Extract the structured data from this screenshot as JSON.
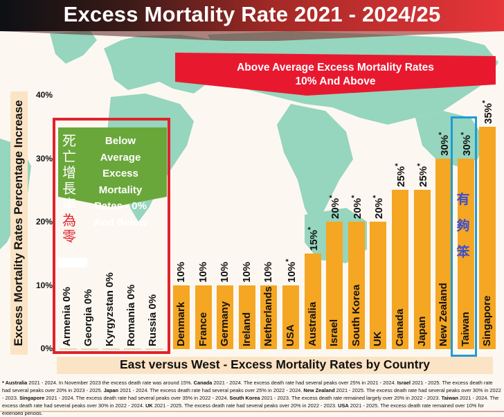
{
  "header": {
    "title": "Excess Mortality Rate 2021 - 2024/25"
  },
  "banners": {
    "above": {
      "line1": "Above Average Excess Mortality Rates",
      "line2": "10% And Above",
      "color": "#e8192f"
    },
    "below": {
      "lines": [
        "Below",
        "Average",
        "Excess",
        "Mortality",
        "Rates - 0%",
        "And Below"
      ],
      "color": "#6aa73a"
    },
    "cjk_zero_growth": {
      "white_chars": [
        "死",
        "亡",
        "增",
        "長",
        "率"
      ],
      "red_chars": [
        "為",
        "零"
      ]
    },
    "cjk_taiwan": [
      "有",
      "夠",
      "笨"
    ]
  },
  "colors": {
    "bar": "#f5a623",
    "red_box": "#e1222c",
    "blue_box": "#1f9ad6",
    "map": "#96d5be",
    "background": "#fcf8f1"
  },
  "chart_data": {
    "type": "bar",
    "title": "Excess Mortality Rate 2021 - 2024/25",
    "xlabel": "East versus West - Excess Mortality Rates by Country",
    "ylabel": "Excess Mortality Rates Percentage Increase",
    "ylim": [
      0,
      40
    ],
    "yticks": [
      "0%",
      "10%",
      "20%",
      "30%",
      "40%"
    ],
    "grid": false,
    "zero_group": {
      "label": "Below Average Excess Mortality Rates - 0% And Below",
      "categories": [
        "Armenia",
        "Georgia",
        "Kyrgyzstan",
        "Romania",
        "Russia"
      ],
      "values": [
        0,
        0,
        0,
        0,
        0
      ],
      "labels": [
        "Armenia 0%",
        "Georgia 0%",
        "Kyrgyzstan 0%",
        "Romania 0%",
        "Russia 0%"
      ]
    },
    "categories": [
      "Denmark",
      "France",
      "Germany",
      "Ireland",
      "Netherlands",
      "USA",
      "Australia",
      "Israel",
      "South Korea",
      "UK",
      "Canada",
      "Japan",
      "New Zealand",
      "Taiwan",
      "Singapore"
    ],
    "values": [
      10,
      10,
      10,
      10,
      10,
      10,
      15,
      20,
      20,
      20,
      25,
      25,
      30,
      30,
      35
    ],
    "value_labels": [
      "10%",
      "10%",
      "10%",
      "10%",
      "10%",
      "10%",
      "15%",
      "20%",
      "20%",
      "20%",
      "25%",
      "25%",
      "30%",
      "30%",
      "35%"
    ],
    "asterisk": [
      false,
      false,
      false,
      false,
      false,
      true,
      true,
      true,
      true,
      true,
      true,
      true,
      true,
      true,
      true
    ],
    "highlighted": "Taiwan"
  },
  "footnote": [
    {
      "b": "* Australia",
      "t": " 2021 - 2024. In November 2023 the excess death rate was around 15%. "
    },
    {
      "b": "Canada",
      "t": " 2021 - 2024. The excess death rate had several peaks over 25% in 2021 - 2024. "
    },
    {
      "b": "Israel",
      "t": " 2021 - 2025. The excess death rate had several peaks over 20% in 2023 - 2025. "
    },
    {
      "b": "Japan",
      "t": " 2021 - 2024. The excess death rate had several peaks over 25% in 2022 - 2024. "
    },
    {
      "b": "New Zealand",
      "t": " 2021 - 2025. The excess death rate had several peaks over 30% in 2022 - 2023. "
    },
    {
      "b": "Singapore",
      "t": " 2021 - 2024. The excess death rate had several peaks over 35% in 2022 - 2024. "
    },
    {
      "b": "South Korea",
      "t": " 2021 - 2023. The excess death rate remained largely over 20% in 2022 - 2023. "
    },
    {
      "b": "Taiwan",
      "t": " 2021 - 2024. The excess death rate had several peaks over 30% in 2022 - 2024. "
    },
    {
      "b": "UK",
      "t": " 2021 - 2025. The excess death rate had several peaks over 20% in 2022 - 2023. "
    },
    {
      "b": "USA",
      "t": " 2021 - 2025. The excess death rate remained over 10% for extended periods."
    }
  ]
}
